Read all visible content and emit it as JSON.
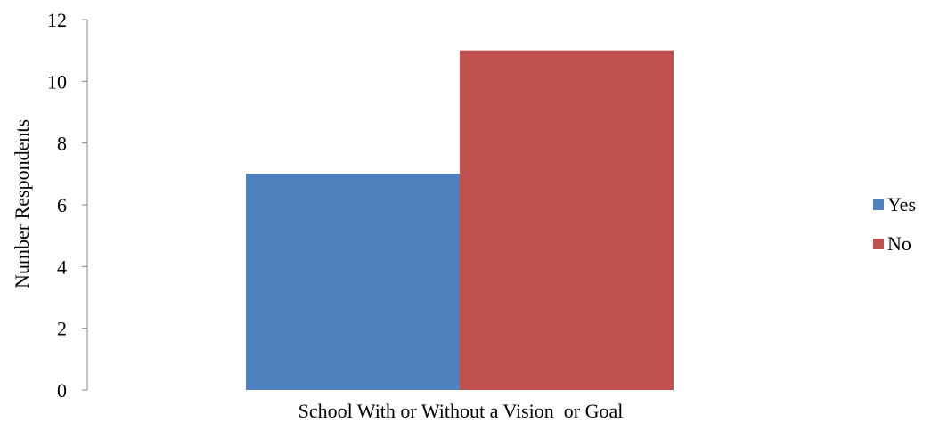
{
  "chart_data": {
    "type": "bar",
    "categories": [
      "School With or Without a Vision  or Goal"
    ],
    "series": [
      {
        "name": "Yes",
        "values": [
          7
        ],
        "color": "#4f81bd"
      },
      {
        "name": "No",
        "values": [
          11
        ],
        "color": "#c0504d"
      }
    ],
    "xlabel": "School With or Without a Vision  or Goal",
    "ylabel": "Number Respondents",
    "ylim": [
      0,
      12
    ],
    "yticks": [
      "0",
      "2",
      "4",
      "6",
      "8",
      "10",
      "12"
    ],
    "grid": false,
    "legend_position": "right"
  }
}
